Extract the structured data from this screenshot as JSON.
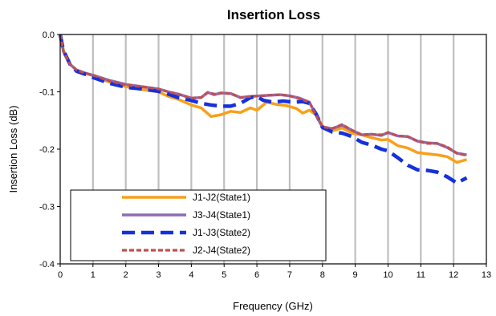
{
  "chart_data": {
    "type": "line",
    "title": "Insertion Loss",
    "xlabel": "Frequency (GHz)",
    "ylabel": "Insertion Loss  (dB)",
    "xlim": [
      0,
      13
    ],
    "ylim": [
      -0.4,
      0.0
    ],
    "x_ticks": [
      "0",
      "1",
      "2",
      "3",
      "4",
      "5",
      "6",
      "7",
      "8",
      "9",
      "10",
      "11",
      "12",
      "13"
    ],
    "y_ticks": [
      "0.0",
      "-0.1",
      "-0.2",
      "-0.3",
      "-0.4"
    ],
    "grid": "vertical",
    "legend_position": "lower-left",
    "series": [
      {
        "name": "J1-J2(State1)",
        "color": "#f7a01a",
        "style": "solid",
        "x": [
          0.0,
          0.1,
          0.3,
          0.5,
          0.8,
          1.0,
          1.5,
          2.0,
          2.5,
          3.0,
          3.3,
          3.6,
          4.0,
          4.3,
          4.6,
          4.9,
          5.2,
          5.5,
          5.8,
          6.0,
          6.3,
          6.6,
          6.9,
          7.2,
          7.4,
          7.6,
          7.8,
          8.0,
          8.3,
          8.6,
          8.9,
          9.2,
          9.5,
          9.8,
          10.0,
          10.3,
          10.6,
          10.9,
          11.2,
          11.5,
          11.8,
          12.1,
          12.4
        ],
        "values": [
          0.0,
          -0.028,
          -0.052,
          -0.062,
          -0.068,
          -0.072,
          -0.083,
          -0.091,
          -0.096,
          -0.1,
          -0.108,
          -0.113,
          -0.123,
          -0.128,
          -0.143,
          -0.14,
          -0.134,
          -0.136,
          -0.128,
          -0.132,
          -0.118,
          -0.122,
          -0.124,
          -0.129,
          -0.137,
          -0.132,
          -0.14,
          -0.16,
          -0.168,
          -0.163,
          -0.172,
          -0.175,
          -0.18,
          -0.184,
          -0.183,
          -0.194,
          -0.198,
          -0.206,
          -0.208,
          -0.21,
          -0.213,
          -0.223,
          -0.218
        ]
      },
      {
        "name": "J3-J4(State1)",
        "color": "#8f6bb5",
        "style": "solid",
        "x": [
          0.0,
          0.1,
          0.3,
          0.5,
          0.8,
          1.0,
          1.5,
          2.0,
          2.5,
          3.0,
          3.3,
          3.6,
          4.0,
          4.3,
          4.5,
          4.7,
          4.9,
          5.2,
          5.5,
          5.8,
          6.1,
          6.4,
          6.7,
          7.0,
          7.3,
          7.6,
          7.8,
          8.0,
          8.3,
          8.6,
          8.9,
          9.2,
          9.5,
          9.8,
          10.0,
          10.3,
          10.6,
          10.9,
          11.2,
          11.5,
          11.8,
          12.1,
          12.4
        ],
        "values": [
          0.0,
          -0.03,
          -0.052,
          -0.062,
          -0.068,
          -0.071,
          -0.08,
          -0.087,
          -0.091,
          -0.095,
          -0.1,
          -0.104,
          -0.111,
          -0.11,
          -0.101,
          -0.105,
          -0.102,
          -0.103,
          -0.11,
          -0.108,
          -0.107,
          -0.106,
          -0.105,
          -0.107,
          -0.111,
          -0.118,
          -0.14,
          -0.162,
          -0.164,
          -0.158,
          -0.167,
          -0.175,
          -0.174,
          -0.176,
          -0.171,
          -0.177,
          -0.178,
          -0.186,
          -0.189,
          -0.19,
          -0.197,
          -0.207,
          -0.21
        ]
      },
      {
        "name": "J1-J3(State2)",
        "color": "#1530dc",
        "style": "dashed",
        "x": [
          0.0,
          0.1,
          0.3,
          0.5,
          0.8,
          1.0,
          1.5,
          2.0,
          2.5,
          3.0,
          3.3,
          3.6,
          4.0,
          4.3,
          4.6,
          4.9,
          5.2,
          5.5,
          5.8,
          6.0,
          6.2,
          6.5,
          6.8,
          7.1,
          7.4,
          7.6,
          7.8,
          8.0,
          8.3,
          8.6,
          8.9,
          9.2,
          9.5,
          9.8,
          10.0,
          10.3,
          10.6,
          10.9,
          11.2,
          11.5,
          11.8,
          12.1,
          12.4
        ],
        "values": [
          0.0,
          -0.028,
          -0.052,
          -0.064,
          -0.07,
          -0.075,
          -0.085,
          -0.092,
          -0.095,
          -0.099,
          -0.104,
          -0.11,
          -0.115,
          -0.12,
          -0.123,
          -0.125,
          -0.125,
          -0.12,
          -0.11,
          -0.108,
          -0.115,
          -0.118,
          -0.116,
          -0.118,
          -0.117,
          -0.12,
          -0.138,
          -0.162,
          -0.17,
          -0.172,
          -0.178,
          -0.188,
          -0.193,
          -0.2,
          -0.203,
          -0.215,
          -0.228,
          -0.236,
          -0.237,
          -0.24,
          -0.248,
          -0.259,
          -0.25
        ]
      },
      {
        "name": "J2-J4(State2)",
        "color": "#c0504d",
        "style": "dashed",
        "x": [
          0.0,
          0.1,
          0.3,
          0.5,
          0.8,
          1.0,
          1.5,
          2.0,
          2.5,
          3.0,
          3.3,
          3.6,
          4.0,
          4.3,
          4.5,
          4.7,
          4.9,
          5.2,
          5.5,
          5.8,
          6.1,
          6.4,
          6.7,
          7.0,
          7.3,
          7.6,
          7.8,
          8.0,
          8.3,
          8.6,
          8.9,
          9.2,
          9.5,
          9.8,
          10.0,
          10.3,
          10.6,
          10.9,
          11.2,
          11.5,
          11.8,
          12.1,
          12.4
        ],
        "values": [
          0.0,
          -0.03,
          -0.052,
          -0.062,
          -0.068,
          -0.071,
          -0.081,
          -0.088,
          -0.091,
          -0.095,
          -0.1,
          -0.104,
          -0.111,
          -0.11,
          -0.101,
          -0.104,
          -0.102,
          -0.103,
          -0.11,
          -0.108,
          -0.107,
          -0.106,
          -0.105,
          -0.107,
          -0.112,
          -0.118,
          -0.14,
          -0.161,
          -0.164,
          -0.157,
          -0.167,
          -0.175,
          -0.174,
          -0.175,
          -0.171,
          -0.177,
          -0.178,
          -0.186,
          -0.19,
          -0.19,
          -0.196,
          -0.207,
          -0.211
        ]
      }
    ]
  }
}
